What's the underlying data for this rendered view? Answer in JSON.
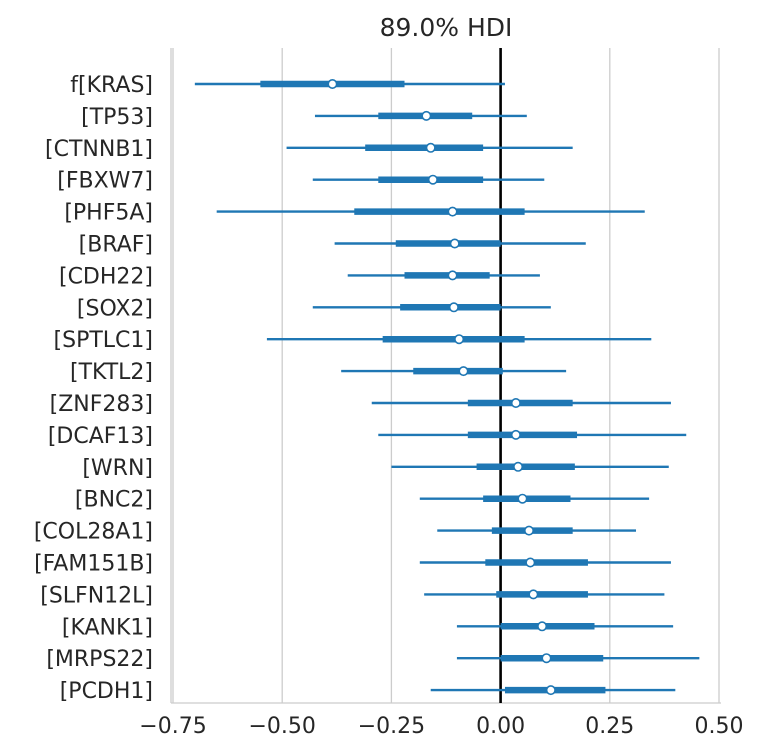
{
  "chart_data": {
    "type": "forest",
    "title": "89.0% HDI",
    "xlim": [
      -0.75,
      0.5
    ],
    "xticks": [
      -0.75,
      -0.5,
      -0.25,
      0.0,
      0.25,
      0.5
    ],
    "xtick_labels": [
      "−0.75",
      "−0.50",
      "−0.25",
      "0.00",
      "0.25",
      "0.50"
    ],
    "reference_line": 0.0,
    "grid": "vertical",
    "color": "#1f77b4",
    "rows": [
      {
        "label": "f[KRAS]",
        "hdi_low": -0.7,
        "hdi_high": 0.01,
        "iqr_low": -0.55,
        "iqr_high": -0.22,
        "mean": -0.385
      },
      {
        "label": "[TP53]",
        "hdi_low": -0.425,
        "hdi_high": 0.06,
        "iqr_low": -0.28,
        "iqr_high": -0.065,
        "mean": -0.17
      },
      {
        "label": "[CTNNB1]",
        "hdi_low": -0.49,
        "hdi_high": 0.165,
        "iqr_low": -0.31,
        "iqr_high": -0.04,
        "mean": -0.16
      },
      {
        "label": "[FBXW7]",
        "hdi_low": -0.43,
        "hdi_high": 0.1,
        "iqr_low": -0.28,
        "iqr_high": -0.04,
        "mean": -0.155
      },
      {
        "label": "[PHF5A]",
        "hdi_low": -0.65,
        "hdi_high": 0.33,
        "iqr_low": -0.335,
        "iqr_high": 0.055,
        "mean": -0.11
      },
      {
        "label": "[BRAF]",
        "hdi_low": -0.38,
        "hdi_high": 0.195,
        "iqr_low": -0.24,
        "iqr_high": 0.0,
        "mean": -0.105
      },
      {
        "label": "[CDH22]",
        "hdi_low": -0.35,
        "hdi_high": 0.09,
        "iqr_low": -0.22,
        "iqr_high": -0.025,
        "mean": -0.11
      },
      {
        "label": "[SOX2]",
        "hdi_low": -0.43,
        "hdi_high": 0.115,
        "iqr_low": -0.23,
        "iqr_high": 0.0,
        "mean": -0.107
      },
      {
        "label": "[SPTLC1]",
        "hdi_low": -0.535,
        "hdi_high": 0.345,
        "iqr_low": -0.27,
        "iqr_high": 0.055,
        "mean": -0.095
      },
      {
        "label": "[TKTL2]",
        "hdi_low": -0.365,
        "hdi_high": 0.15,
        "iqr_low": -0.2,
        "iqr_high": 0.005,
        "mean": -0.085
      },
      {
        "label": "[ZNF283]",
        "hdi_low": -0.295,
        "hdi_high": 0.39,
        "iqr_low": -0.075,
        "iqr_high": 0.165,
        "mean": 0.035
      },
      {
        "label": "[DCAF13]",
        "hdi_low": -0.28,
        "hdi_high": 0.425,
        "iqr_low": -0.075,
        "iqr_high": 0.175,
        "mean": 0.035
      },
      {
        "label": "[WRN]",
        "hdi_low": -0.25,
        "hdi_high": 0.385,
        "iqr_low": -0.055,
        "iqr_high": 0.17,
        "mean": 0.04
      },
      {
        "label": "[BNC2]",
        "hdi_low": -0.185,
        "hdi_high": 0.34,
        "iqr_low": -0.04,
        "iqr_high": 0.16,
        "mean": 0.05
      },
      {
        "label": "[COL28A1]",
        "hdi_low": -0.145,
        "hdi_high": 0.31,
        "iqr_low": -0.02,
        "iqr_high": 0.165,
        "mean": 0.065
      },
      {
        "label": "[FAM151B]",
        "hdi_low": -0.185,
        "hdi_high": 0.39,
        "iqr_low": -0.035,
        "iqr_high": 0.2,
        "mean": 0.068
      },
      {
        "label": "[SLFN12L]",
        "hdi_low": -0.175,
        "hdi_high": 0.375,
        "iqr_low": -0.01,
        "iqr_high": 0.2,
        "mean": 0.075
      },
      {
        "label": "[KANK1]",
        "hdi_low": -0.1,
        "hdi_high": 0.395,
        "iqr_low": 0.0,
        "iqr_high": 0.215,
        "mean": 0.095
      },
      {
        "label": "[MRPS22]",
        "hdi_low": -0.1,
        "hdi_high": 0.455,
        "iqr_low": 0.0,
        "iqr_high": 0.235,
        "mean": 0.105
      },
      {
        "label": "[PCDH1]",
        "hdi_low": -0.16,
        "hdi_high": 0.4,
        "iqr_low": 0.01,
        "iqr_high": 0.24,
        "mean": 0.115
      }
    ]
  }
}
